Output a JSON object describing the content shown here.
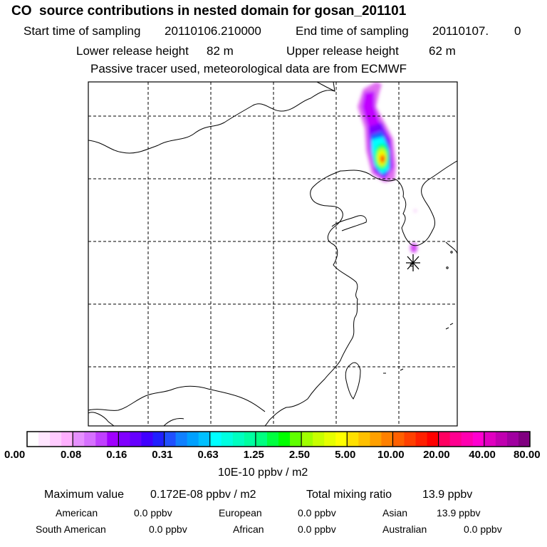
{
  "title": "CO  source contributions in nested domain for gosan_201101",
  "sampling": {
    "start_label": "Start time of sampling",
    "start_value": "20110106.210000",
    "end_label": "End time of sampling",
    "end_value": "20110107.",
    "end_tail": "0"
  },
  "release": {
    "lower_label": "Lower release height",
    "lower_value": "82 m",
    "upper_label": "Upper release height",
    "upper_value": "62 m"
  },
  "tracer_note": "Passive tracer used, meteorological data are from ECMWF",
  "map": {
    "receptor_marker": "asterisk-icon",
    "grid_lines": "dashed",
    "coast_color": "#000000",
    "plume_colors": [
      "#e070f0",
      "#c000ff",
      "#7a00ff",
      "#1060ff",
      "#00ffff",
      "#00ff60",
      "#c8ff00",
      "#ffff00",
      "#ff7000",
      "#ff0000"
    ]
  },
  "colorbar": {
    "tick_labels": [
      "0.00",
      "0.08",
      "0.16",
      "0.31",
      "0.63",
      "1.25",
      "2.50",
      "5.00",
      "10.00",
      "20.00",
      "40.00",
      "80.00"
    ],
    "colors": [
      "#ffffff",
      "#ffe6ff",
      "#ffccff",
      "#ffb0ff",
      "#e690ff",
      "#d670ff",
      "#c040ff",
      "#a000ff",
      "#8000ff",
      "#6600ff",
      "#4000ff",
      "#2020ff",
      "#2050ff",
      "#1080ff",
      "#00a0ff",
      "#00c0ff",
      "#00ffff",
      "#00ffe0",
      "#00ffc0",
      "#00ffa0",
      "#00ff80",
      "#00ff40",
      "#00ff00",
      "#60ff00",
      "#a0ff00",
      "#c8ff00",
      "#e6ff00",
      "#ffff00",
      "#ffe000",
      "#ffc000",
      "#ffa000",
      "#ff8000",
      "#ff6000",
      "#ff4000",
      "#ff2000",
      "#ff0000",
      "#ff0060",
      "#ff0090",
      "#ff00b0",
      "#ff00d0",
      "#e000c0",
      "#c000b0",
      "#a000a0",
      "#800080"
    ],
    "units": "10E-10 ppbv / m2"
  },
  "summary": {
    "max_label": "Maximum value",
    "max_value": "0.172E-08 ppbv / m2",
    "total_label": "Total mixing ratio",
    "total_value": "13.9 ppbv",
    "regions": [
      {
        "name": "American",
        "value": "0.0 ppbv"
      },
      {
        "name": "European",
        "value": "0.0 ppbv"
      },
      {
        "name": "Asian",
        "value": "13.9 ppbv"
      },
      {
        "name": "South American",
        "value": "0.0 ppbv"
      },
      {
        "name": "African",
        "value": "0.0 ppbv"
      },
      {
        "name": "Australian",
        "value": "0.0 ppbv"
      }
    ]
  }
}
